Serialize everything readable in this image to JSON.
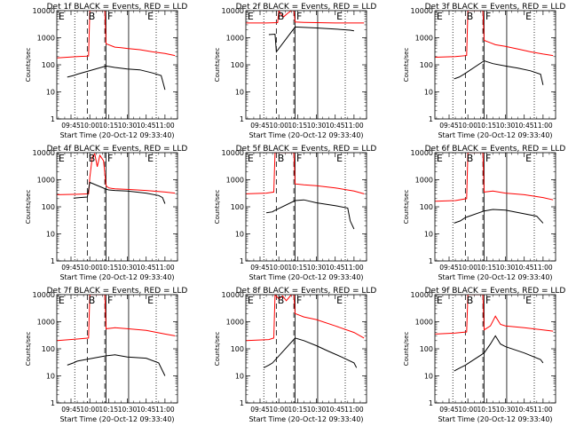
{
  "figure": {
    "background": "#ffffff",
    "axis_color": "#000000",
    "events_color": "#000000",
    "lld_color": "#ff0000"
  },
  "chart_data": [
    {
      "type": "line",
      "title": "Det 1f BLACK = Events, RED = LLD",
      "xlabel": "Start Time (20-Oct-12 09:33:40)",
      "ylabel": "Counts/sec",
      "x_ticks": [
        "09:45",
        "10:00",
        "10:15",
        "10:30",
        "10:45",
        "11:00"
      ],
      "y_ticks": [
        "1",
        "10",
        "100",
        "1000",
        "10000"
      ],
      "yscale": "log",
      "ylim": [
        1,
        10000
      ],
      "region_labels": [
        "E",
        "B",
        "F",
        "E"
      ],
      "series": [
        {
          "name": "LLD",
          "color": "#ff0000",
          "x": [
            "09:34",
            "09:50",
            "09:59",
            "10:00",
            "10:06",
            "10:10",
            "10:12",
            "10:13",
            "10:20",
            "10:25",
            "10:30",
            "10:40",
            "10:50",
            "11:00",
            "11:08"
          ],
          "y": [
            180,
            200,
            210,
            10000,
            10000,
            10000,
            10000,
            600,
            450,
            430,
            400,
            360,
            300,
            260,
            220
          ]
        },
        {
          "name": "Events",
          "color": "#000000",
          "x": [
            "09:42",
            "09:47",
            "09:50",
            "10:13",
            "10:20",
            "10:30",
            "10:40",
            "10:50",
            "10:57",
            "11:00"
          ],
          "y": [
            35,
            40,
            45,
            90,
            80,
            70,
            65,
            50,
            40,
            12
          ]
        }
      ]
    },
    {
      "type": "line",
      "title": "Det 2f BLACK = Events, RED = LLD",
      "xlabel": "Start Time (20-Oct-12 09:33:40)",
      "ylabel": "Counts/sec",
      "x_ticks": [
        "09:45",
        "10:00",
        "10:15",
        "10:30",
        "10:45",
        "11:00"
      ],
      "y_ticks": [
        "1",
        "10",
        "100",
        "1000",
        "10000"
      ],
      "yscale": "log",
      "ylim": [
        1,
        10000
      ],
      "region_labels": [
        "E",
        "B",
        "F",
        "E"
      ],
      "series": [
        {
          "name": "LLD",
          "color": "#ff0000",
          "x": [
            "09:34",
            "09:50",
            "09:59",
            "10:00",
            "10:02",
            "10:04",
            "10:07",
            "10:10",
            "10:12",
            "10:13",
            "10:20",
            "10:30",
            "10:45",
            "11:00",
            "11:08"
          ],
          "y": [
            3500,
            3500,
            3600,
            10000,
            7000,
            6000,
            8000,
            10000,
            10000,
            3800,
            3700,
            3600,
            3500,
            3500,
            3500
          ]
        },
        {
          "name": "Events",
          "color": "#000000",
          "x": [
            "09:52",
            "09:57",
            "09:58",
            "10:13",
            "10:30",
            "10:45",
            "10:57",
            "11:00"
          ],
          "y": [
            1300,
            1350,
            300,
            2500,
            2300,
            2100,
            1900,
            1800
          ]
        }
      ]
    },
    {
      "type": "line",
      "title": "Det 3f BLACK = Events, RED = LLD",
      "xlabel": "Start Time (20-Oct-12 09:33:40)",
      "ylabel": "Counts/sec",
      "x_ticks": [
        "09:45",
        "10:00",
        "10:15",
        "10:30",
        "10:45",
        "11:00"
      ],
      "y_ticks": [
        "1",
        "10",
        "100",
        "1000",
        "10000"
      ],
      "yscale": "log",
      "ylim": [
        1,
        10000
      ],
      "region_labels": [
        "E",
        "B",
        "F",
        "E"
      ],
      "series": [
        {
          "name": "LLD",
          "color": "#ff0000",
          "x": [
            "09:34",
            "09:50",
            "09:59",
            "10:00",
            "10:10",
            "10:12",
            "10:13",
            "10:18",
            "10:22",
            "10:30",
            "10:40",
            "10:50",
            "11:00",
            "11:08"
          ],
          "y": [
            190,
            200,
            220,
            10000,
            10000,
            10000,
            800,
            650,
            550,
            480,
            380,
            300,
            250,
            220
          ]
        },
        {
          "name": "Events",
          "color": "#000000",
          "x": [
            "09:49",
            "09:53",
            "09:57",
            "10:13",
            "10:20",
            "10:30",
            "10:40",
            "10:50",
            "10:58",
            "11:00"
          ],
          "y": [
            30,
            35,
            45,
            140,
            110,
            90,
            75,
            60,
            45,
            18
          ]
        }
      ]
    },
    {
      "type": "line",
      "title": "Det 4f BLACK = Events, RED = LLD",
      "xlabel": "Start Time (20-Oct-12 09:33:40)",
      "ylabel": "Counts/sec",
      "x_ticks": [
        "09:45",
        "10:00",
        "10:15",
        "10:30",
        "10:45",
        "11:00"
      ],
      "y_ticks": [
        "1",
        "10",
        "100",
        "1000",
        "10000"
      ],
      "yscale": "log",
      "ylim": [
        1,
        10000
      ],
      "region_labels": [
        "E",
        "B",
        "F",
        "E"
      ],
      "series": [
        {
          "name": "LLD",
          "color": "#ff0000",
          "x": [
            "09:34",
            "09:50",
            "09:59",
            "10:00",
            "10:02",
            "10:04",
            "10:06",
            "10:08",
            "10:11",
            "10:13",
            "10:15",
            "10:20",
            "10:30",
            "10:45",
            "11:00",
            "11:08"
          ],
          "y": [
            280,
            290,
            300,
            1200,
            7000,
            9000,
            3000,
            8000,
            5000,
            600,
            500,
            460,
            440,
            400,
            350,
            320
          ]
        },
        {
          "name": "Events",
          "color": "#000000",
          "x": [
            "09:47",
            "09:52",
            "09:58",
            "10:00",
            "10:13",
            "10:15",
            "10:20",
            "10:30",
            "10:45",
            "10:55",
            "10:58",
            "11:00"
          ],
          "y": [
            210,
            220,
            230,
            800,
            450,
            420,
            400,
            380,
            320,
            260,
            220,
            130
          ]
        }
      ]
    },
    {
      "type": "line",
      "title": "Det 5f BLACK = Events, RED = LLD",
      "xlabel": "Start Time (20-Oct-12 09:33:40)",
      "ylabel": "Counts/sec",
      "x_ticks": [
        "09:45",
        "10:00",
        "10:15",
        "10:30",
        "10:45",
        "11:00"
      ],
      "y_ticks": [
        "1",
        "10",
        "100",
        "1000",
        "10000"
      ],
      "yscale": "log",
      "ylim": [
        1,
        10000
      ],
      "region_labels": [
        "E",
        "B",
        "F",
        "E"
      ],
      "series": [
        {
          "name": "LLD",
          "color": "#ff0000",
          "x": [
            "09:34",
            "09:50",
            "09:56",
            "09:57",
            "10:00",
            "10:10",
            "10:12",
            "10:13",
            "10:20",
            "10:30",
            "10:45",
            "11:00",
            "11:08"
          ],
          "y": [
            300,
            320,
            350,
            10000,
            10000,
            10000,
            10000,
            700,
            650,
            600,
            500,
            380,
            300
          ]
        },
        {
          "name": "Events",
          "color": "#000000",
          "x": [
            "09:50",
            "09:55",
            "09:56",
            "10:13",
            "10:20",
            "10:30",
            "10:45",
            "10:55",
            "10:57",
            "11:00"
          ],
          "y": [
            60,
            65,
            70,
            170,
            180,
            140,
            110,
            90,
            30,
            15
          ]
        }
      ]
    },
    {
      "type": "line",
      "title": "Det 6f BLACK = Events, RED = LLD",
      "xlabel": "Start Time (20-Oct-12 09:33:40)",
      "ylabel": "Counts/sec",
      "x_ticks": [
        "09:45",
        "10:00",
        "10:15",
        "10:30",
        "10:45",
        "11:00"
      ],
      "y_ticks": [
        "1",
        "10",
        "100",
        "1000",
        "10000"
      ],
      "yscale": "log",
      "ylim": [
        1,
        10000
      ],
      "region_labels": [
        "E",
        "B",
        "F",
        "E"
      ],
      "series": [
        {
          "name": "LLD",
          "color": "#ff0000",
          "x": [
            "09:34",
            "09:50",
            "09:59",
            "10:00",
            "10:10",
            "10:12",
            "10:13",
            "10:20",
            "10:30",
            "10:45",
            "11:00",
            "11:08"
          ],
          "y": [
            160,
            170,
            200,
            10000,
            10000,
            10000,
            350,
            380,
            320,
            280,
            220,
            180
          ]
        },
        {
          "name": "Events",
          "color": "#000000",
          "x": [
            "09:49",
            "09:54",
            "09:58",
            "10:13",
            "10:20",
            "10:30",
            "10:45",
            "10:55",
            "11:00"
          ],
          "y": [
            25,
            30,
            40,
            70,
            80,
            75,
            55,
            45,
            25
          ]
        }
      ]
    },
    {
      "type": "line",
      "title": "Det 7f BLACK = Events, RED = LLD",
      "xlabel": "Start Time (20-Oct-12 09:33:40)",
      "ylabel": "Counts/sec",
      "x_ticks": [
        "09:45",
        "10:00",
        "10:15",
        "10:30",
        "10:45",
        "11:00"
      ],
      "y_ticks": [
        "1",
        "10",
        "100",
        "1000",
        "10000"
      ],
      "yscale": "log",
      "ylim": [
        1,
        10000
      ],
      "region_labels": [
        "E",
        "B",
        "F",
        "E"
      ],
      "series": [
        {
          "name": "LLD",
          "color": "#ff0000",
          "x": [
            "09:34",
            "09:50",
            "09:59",
            "10:00",
            "10:10",
            "10:12",
            "10:13",
            "10:20",
            "10:30",
            "10:45",
            "11:00",
            "11:08"
          ],
          "y": [
            200,
            230,
            250,
            10000,
            10000,
            10000,
            550,
            600,
            550,
            480,
            350,
            300
          ]
        },
        {
          "name": "Events",
          "color": "#000000",
          "x": [
            "09:42",
            "09:47",
            "09:50",
            "10:13",
            "10:20",
            "10:30",
            "10:45",
            "10:55",
            "11:00"
          ],
          "y": [
            25,
            30,
            35,
            55,
            60,
            50,
            45,
            30,
            10
          ]
        }
      ]
    },
    {
      "type": "line",
      "title": "Det 8f BLACK = Events, RED = LLD",
      "xlabel": "Start Time (20-Oct-12 09:33:40)",
      "ylabel": "Counts/sec",
      "x_ticks": [
        "09:45",
        "10:00",
        "10:15",
        "10:30",
        "10:45",
        "11:00"
      ],
      "y_ticks": [
        "1",
        "10",
        "100",
        "1000",
        "10000"
      ],
      "yscale": "log",
      "ylim": [
        1,
        10000
      ],
      "region_labels": [
        "E",
        "B",
        "F",
        "E"
      ],
      "series": [
        {
          "name": "LLD",
          "color": "#ff0000",
          "x": [
            "09:34",
            "09:52",
            "09:56",
            "09:57",
            "10:00",
            "10:03",
            "10:06",
            "10:10",
            "10:12",
            "10:13",
            "10:20",
            "10:30",
            "10:45",
            "11:00",
            "11:08"
          ],
          "y": [
            200,
            220,
            250,
            10000,
            7000,
            9000,
            6000,
            10000,
            10000,
            2000,
            1500,
            1200,
            700,
            400,
            250
          ]
        },
        {
          "name": "Events",
          "color": "#000000",
          "x": [
            "09:48",
            "09:52",
            "09:55",
            "10:13",
            "10:20",
            "10:30",
            "10:40",
            "10:50",
            "11:00",
            "11:02"
          ],
          "y": [
            20,
            25,
            30,
            250,
            200,
            130,
            80,
            50,
            30,
            20
          ]
        }
      ]
    },
    {
      "type": "line",
      "title": "Det 9f BLACK = Events, RED = LLD",
      "xlabel": "Start Time (20-Oct-12 09:33:40)",
      "ylabel": "Counts/sec",
      "x_ticks": [
        "09:45",
        "10:00",
        "10:15",
        "10:30",
        "10:45",
        "11:00"
      ],
      "y_ticks": [
        "1",
        "10",
        "100",
        "1000",
        "10000"
      ],
      "yscale": "log",
      "ylim": [
        1,
        10000
      ],
      "region_labels": [
        "E",
        "B",
        "F",
        "E"
      ],
      "series": [
        {
          "name": "LLD",
          "color": "#ff0000",
          "x": [
            "09:34",
            "09:50",
            "09:59",
            "10:00",
            "10:10",
            "10:12",
            "10:13",
            "10:18",
            "10:22",
            "10:26",
            "10:30",
            "10:45",
            "11:00",
            "11:08"
          ],
          "y": [
            350,
            380,
            420,
            10000,
            10000,
            10000,
            500,
            700,
            1600,
            800,
            700,
            600,
            500,
            450
          ]
        },
        {
          "name": "Events",
          "color": "#000000",
          "x": [
            "09:49",
            "09:54",
            "09:58",
            "10:13",
            "10:18",
            "10:22",
            "10:26",
            "10:30",
            "10:45",
            "10:58",
            "11:00"
          ],
          "y": [
            15,
            20,
            25,
            70,
            150,
            300,
            150,
            120,
            70,
            40,
            30
          ]
        }
      ]
    }
  ]
}
